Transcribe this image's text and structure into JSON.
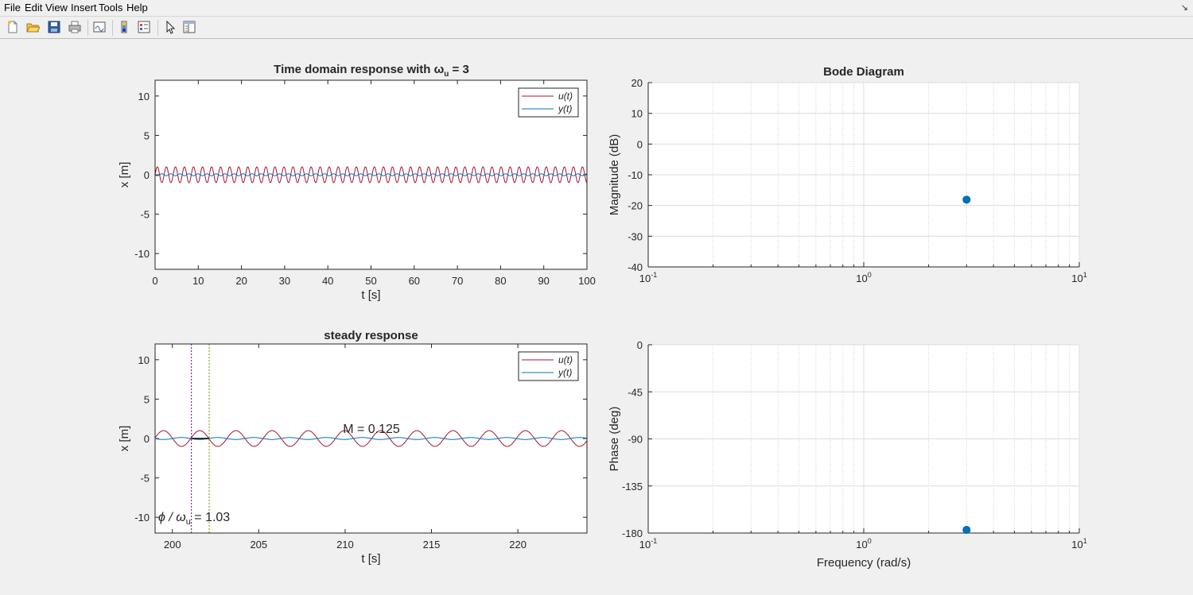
{
  "menu": {
    "items": [
      "File",
      "Edit",
      "View",
      "Insert",
      "Tools",
      "Help"
    ]
  },
  "toolbar": {
    "buttons": [
      "new-figure-icon",
      "open-file-icon",
      "save-icon",
      "print-icon",
      "link-plot-icon",
      "insert-colorbar-icon",
      "insert-legend-icon",
      "pointer-icon",
      "property-inspector-icon"
    ]
  },
  "chart_data": [
    {
      "type": "line",
      "title_prefix": "Time  domain  response  with  ω",
      "title_sub": "u",
      "title_suffix": "  =  3",
      "xlabel": "t [s]",
      "ylabel": "x [m]",
      "xlim": [
        0,
        100
      ],
      "ylim": [
        -12,
        12
      ],
      "xticks": [
        0,
        10,
        20,
        30,
        40,
        50,
        60,
        70,
        80,
        90,
        100
      ],
      "yticks": [
        -10,
        -5,
        0,
        5,
        10
      ],
      "legend": [
        "u(t)",
        "y(t)"
      ],
      "legend_position": "top-right",
      "series": [
        {
          "name": "u(t)",
          "color": "#a2142f",
          "amplitude": 1.0,
          "omega": 3,
          "phase": 0
        },
        {
          "name": "y(t)",
          "color": "#0072bd",
          "amplitude": 0.125,
          "omega": 3,
          "phase": -3.09
        }
      ]
    },
    {
      "type": "line",
      "title": "steady response",
      "xlabel": "t [s]",
      "ylabel": "x [m]",
      "xlim": [
        199,
        224
      ],
      "ylim": [
        -12,
        12
      ],
      "xticks": [
        200,
        205,
        210,
        215,
        220
      ],
      "yticks": [
        -10,
        -5,
        0,
        5,
        10
      ],
      "legend": [
        "u(t)",
        "y(t)"
      ],
      "legend_position": "top-right",
      "series": [
        {
          "name": "u(t)",
          "color": "#a2142f",
          "amplitude": 1.0,
          "omega": 3,
          "phase": 0
        },
        {
          "name": "y(t)",
          "color": "#0072bd",
          "amplitude": 0.125,
          "omega": 3,
          "phase": -3.09
        }
      ],
      "vlines": [
        {
          "x": 201.1,
          "color": "#7e2f8e"
        },
        {
          "x": 202.13,
          "color": "#77ac30"
        }
      ],
      "annotation_magnitude": "M = 0.125",
      "annotation_phase_prefix": "ϕ  /  ω",
      "annotation_phase_sub": "u",
      "annotation_phase_suffix": "  =  1.03"
    },
    {
      "type": "scatter",
      "title": "Bode Diagram",
      "ylabel": "Magnitude (dB)",
      "xscale": "log",
      "xlim": [
        0.1,
        10
      ],
      "ylim": [
        -40,
        20
      ],
      "yticks": [
        -40,
        -30,
        -20,
        -10,
        0,
        10,
        20
      ],
      "xtick_exponents": [
        "-1",
        "0",
        "1"
      ],
      "points": [
        {
          "x": 3,
          "y": -18.1
        }
      ],
      "grid": true
    },
    {
      "type": "scatter",
      "ylabel": "Phase (deg)",
      "xlabel": "Frequency (rad/s)",
      "xscale": "log",
      "xlim": [
        0.1,
        10
      ],
      "ylim": [
        -180,
        0
      ],
      "yticks": [
        -180,
        -135,
        -90,
        -45,
        0
      ],
      "xtick_exponents": [
        "-1",
        "0",
        "1"
      ],
      "points": [
        {
          "x": 3,
          "y": -177
        }
      ],
      "grid": true
    }
  ]
}
